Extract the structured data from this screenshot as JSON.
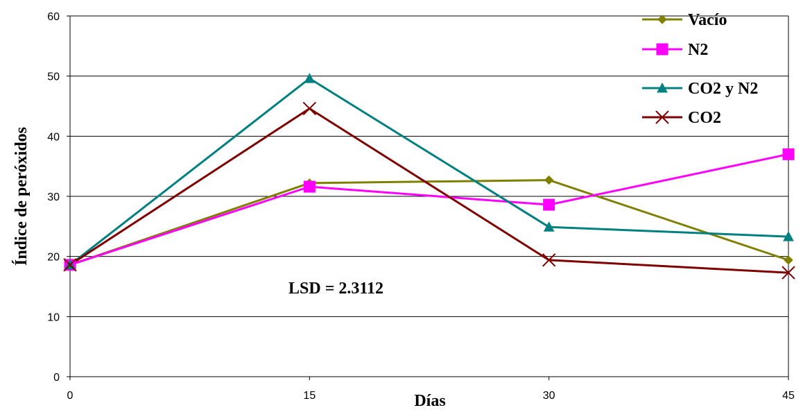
{
  "chart_data": {
    "type": "line",
    "xlabel": "Días",
    "ylabel": "Índice de peróxidos",
    "x": [
      0,
      15,
      30,
      45
    ],
    "x_tick_labels": [
      "0",
      "15",
      "30",
      "45"
    ],
    "ylim": [
      0,
      60
    ],
    "y_ticks": [
      0,
      10,
      20,
      30,
      40,
      50,
      60
    ],
    "grid": "horizontal",
    "legend_position": "top-right",
    "annotation": "LSD = 2.3112",
    "series": [
      {
        "name": "Vacío",
        "values": [
          18.6,
          32.2,
          32.7,
          19.4
        ],
        "color": "#808000",
        "marker": "diamond"
      },
      {
        "name": "N2",
        "values": [
          18.6,
          31.6,
          28.6,
          37.0
        ],
        "color": "#ff00ff",
        "marker": "square"
      },
      {
        "name": "CO2 y N2",
        "values": [
          18.6,
          49.6,
          24.9,
          23.3
        ],
        "color": "#008080",
        "marker": "triangle"
      },
      {
        "name": "CO2",
        "values": [
          18.6,
          44.6,
          19.4,
          17.3
        ],
        "color": "#800000",
        "marker": "x"
      }
    ]
  }
}
